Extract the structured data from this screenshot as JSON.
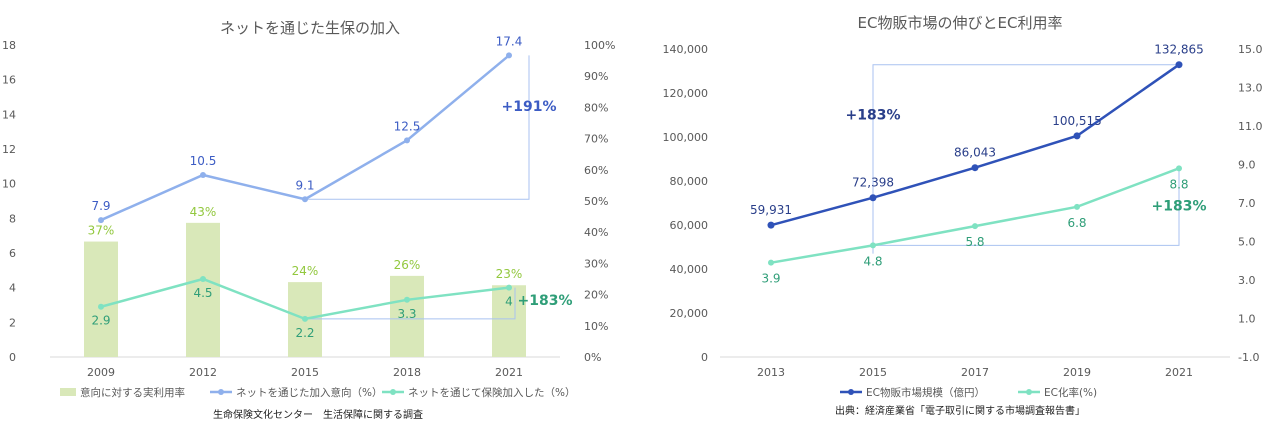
{
  "chart_data": [
    {
      "type": "bar",
      "title": "ネットを通じた生保の加入",
      "categories": [
        "2009",
        "2012",
        "2015",
        "2018",
        "2021"
      ],
      "left_axis": {
        "ylim": [
          0,
          18
        ],
        "ticks": [
          "0",
          "2",
          "4",
          "6",
          "8",
          "10",
          "12",
          "14",
          "16",
          "18"
        ]
      },
      "right_axis": {
        "ylim": [
          0,
          100
        ],
        "ticks": [
          "0%",
          "10%",
          "20%",
          "30%",
          "40%",
          "50%",
          "60%",
          "70%",
          "80%",
          "90%",
          "100%"
        ]
      },
      "series": [
        {
          "name": "意向に対する実利用率",
          "type": "bar",
          "axis": "right",
          "color": "#d9e8b9",
          "label_color": "#92c83e",
          "values": [
            37,
            43,
            24,
            26,
            23
          ],
          "labels": [
            "37%",
            "43%",
            "24%",
            "26%",
            "23%"
          ]
        },
        {
          "name": "ネットを通じた加入意向（%）",
          "type": "line",
          "axis": "left",
          "color": "#8fb0ec",
          "label_color": "#3c5cc4",
          "values": [
            7.9,
            10.5,
            9.1,
            12.5,
            17.4
          ],
          "labels": [
            "7.9",
            "10.5",
            "9.1",
            "12.5",
            "17.4"
          ]
        },
        {
          "name": "ネットを通じて保険加入した（%）",
          "type": "line",
          "axis": "left",
          "color": "#7fe2c2",
          "label_color": "#2f9e78",
          "values": [
            2.9,
            4.5,
            2.2,
            3.3,
            4
          ],
          "labels": [
            "2.9",
            "4.5",
            "2.2",
            "3.3",
            "4"
          ]
        }
      ],
      "annotations": [
        {
          "text": "+191%",
          "color": "#3c5cc4",
          "from": 9.1,
          "to": 17.4
        },
        {
          "text": "+183%",
          "color": "#2f9e78",
          "from": 2.2,
          "to": 4
        }
      ],
      "legend_position": "bottom",
      "source": "生命保険文化センター　生活保障に関する調査"
    },
    {
      "type": "line",
      "title": "EC物販市場の伸びとEC利用率",
      "categories": [
        "2013",
        "2015",
        "2017",
        "2019",
        "2021"
      ],
      "left_axis": {
        "ylim": [
          0,
          140000
        ],
        "ticks": [
          "0",
          "20,000",
          "40,000",
          "60,000",
          "80,000",
          "100,000",
          "120,000",
          "140,000"
        ]
      },
      "right_axis": {
        "ylim": [
          -1,
          15
        ],
        "ticks": [
          "-1.0",
          "1.0",
          "3.0",
          "5.0",
          "7.0",
          "9.0",
          "11.0",
          "13.0",
          "15.0"
        ]
      },
      "series": [
        {
          "name": "EC物販市場規模（億円）",
          "type": "line",
          "axis": "left",
          "color": "#2f52b8",
          "label_color": "#2a3f8a",
          "values": [
            59931,
            72398,
            86043,
            100515,
            132865
          ],
          "labels": [
            "59,931",
            "72,398",
            "86,043",
            "100,515",
            "132,865"
          ]
        },
        {
          "name": "EC化率(%)",
          "type": "line",
          "axis": "right",
          "color": "#7fe2c2",
          "label_color": "#2f9e78",
          "values": [
            3.9,
            4.8,
            5.8,
            6.8,
            8.8
          ],
          "labels": [
            "3.9",
            "4.8",
            "5.8",
            "6.8",
            "8.8"
          ]
        }
      ],
      "annotations": [
        {
          "text": "+183%",
          "color": "#2a3f8a",
          "from": 47000,
          "to": 132865
        },
        {
          "text": "+183%",
          "color": "#2f9e78",
          "from": 4.8,
          "to": 8.8
        }
      ],
      "legend_position": "bottom",
      "source": "出典：経済産業省「電子取引に関する市場調査報告書」"
    }
  ]
}
